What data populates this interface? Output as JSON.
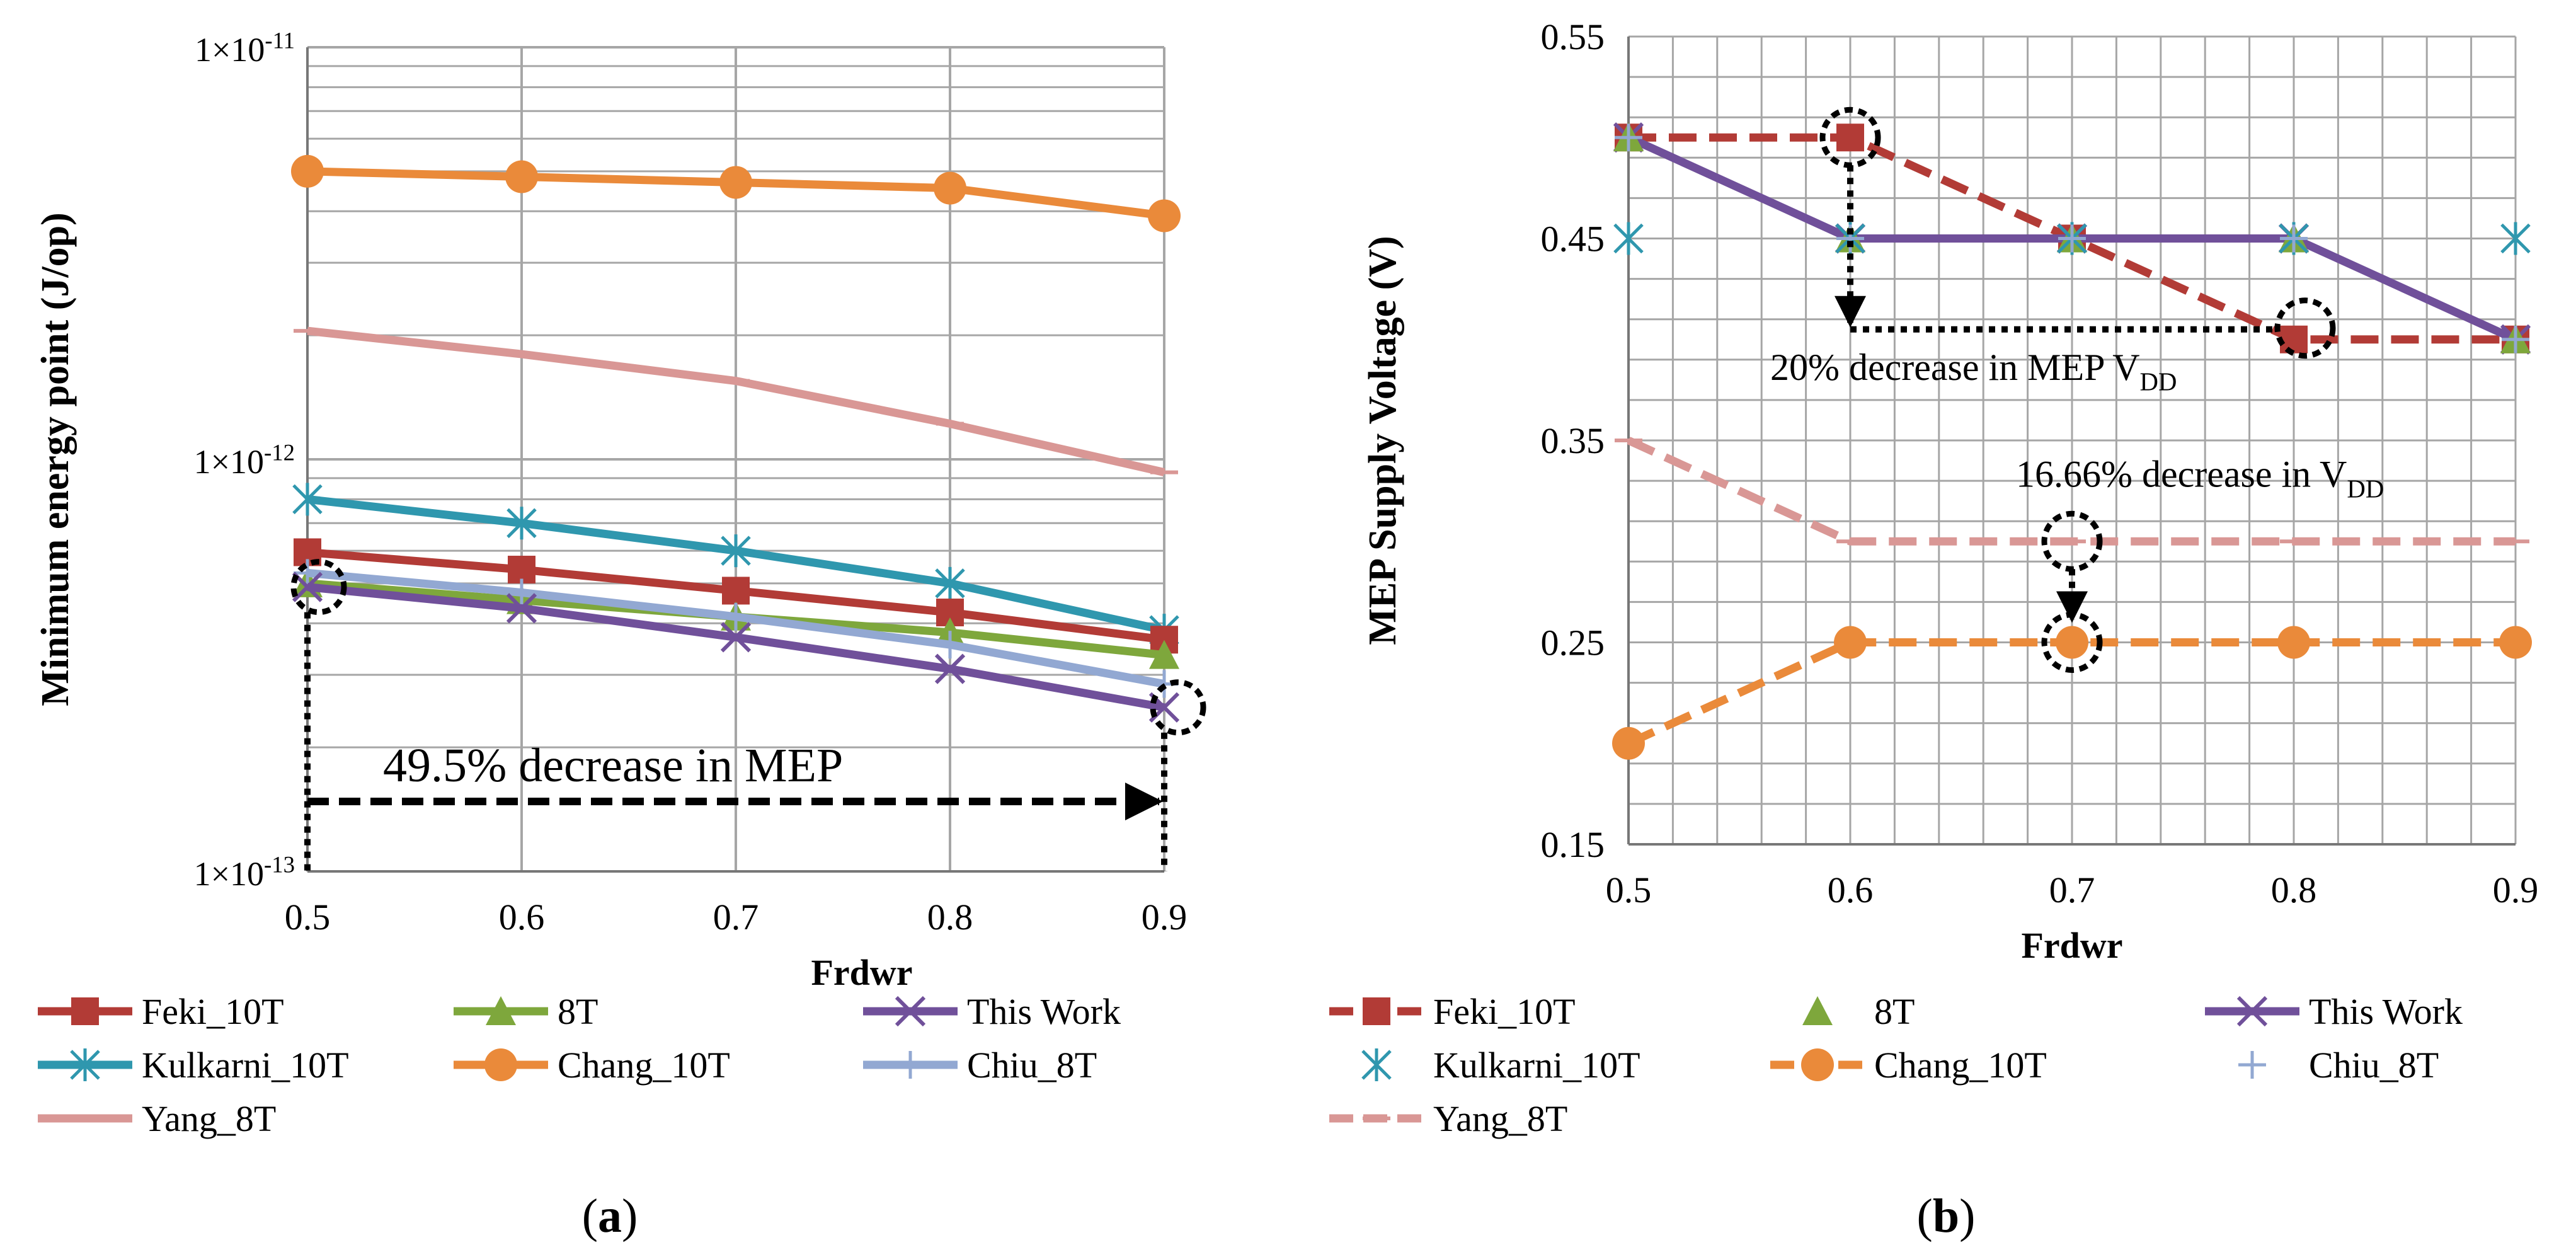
{
  "colors": {
    "feki": "#b23b36",
    "eight_t": "#7ea73c",
    "this_work": "#70509a",
    "kulkarni": "#2f97ae",
    "chang": "#ea8a3a",
    "chiu": "#92a8d2",
    "yang": "#d99795",
    "grid": "#a6a6a6",
    "annotation": "#000000"
  },
  "chart_data": [
    {
      "id": "a",
      "type": "line",
      "yscale": "log",
      "panel_label": "(a)",
      "xlabel": "Frdwr",
      "ylabel": "Minimum energy point (J/op)",
      "x": [
        0.5,
        0.6,
        0.7,
        0.8,
        0.9
      ],
      "x_tick_labels": [
        "0.5",
        "0.6",
        "0.7",
        "0.8",
        "0.9"
      ],
      "ylim": [
        1e-13,
        1e-11
      ],
      "y_ticks": [
        {
          "value": 1e-11,
          "base": "1×10",
          "exp": "-11"
        },
        {
          "value": 1e-12,
          "base": "1×10",
          "exp": "-12"
        },
        {
          "value": 1e-13,
          "base": "1×10",
          "exp": "-13"
        }
      ],
      "grid": true,
      "series": [
        {
          "key": "chang",
          "name": "Chang_10T",
          "marker": "circle",
          "dash": "solid",
          "values": [
            5e-12,
            4.85e-12,
            4.7e-12,
            4.55e-12,
            3.9e-12
          ]
        },
        {
          "key": "yang",
          "name": "Yang_8T",
          "marker": "dash",
          "dash": "solid",
          "values": [
            2.05e-12,
            1.8e-12,
            1.55e-12,
            1.22e-12,
            9.3e-13
          ]
        },
        {
          "key": "kulkarni",
          "name": "Kulkarni_10T",
          "marker": "asterisk",
          "dash": "solid",
          "values": [
            8e-13,
            7e-13,
            6e-13,
            5e-13,
            3.85e-13
          ]
        },
        {
          "key": "feki",
          "name": "Feki_10T",
          "marker": "square",
          "dash": "solid",
          "values": [
            5.95e-13,
            5.4e-13,
            4.8e-13,
            4.25e-13,
            3.65e-13
          ]
        },
        {
          "key": "eight_t",
          "name": "8T",
          "marker": "triangle",
          "dash": "solid",
          "values": [
            5e-13,
            4.55e-13,
            4.15e-13,
            3.8e-13,
            3.35e-13
          ]
        },
        {
          "key": "chiu",
          "name": "Chiu_8T",
          "marker": "plus",
          "dash": "solid",
          "values": [
            5.3e-13,
            4.75e-13,
            4.15e-13,
            3.55e-13,
            2.85e-13
          ]
        },
        {
          "key": "this_work",
          "name": "This Work",
          "marker": "x",
          "dash": "solid",
          "values": [
            4.9e-13,
            4.35e-13,
            3.7e-13,
            3.1e-13,
            2.5e-13
          ]
        }
      ],
      "legend_order": [
        "feki",
        "eight_t",
        "this_work",
        "kulkarni",
        "chang",
        "chiu",
        "yang"
      ],
      "annotations": {
        "mep_text": "49.5% decrease in MEP"
      }
    },
    {
      "id": "b",
      "type": "line",
      "yscale": "linear",
      "panel_label": "(b)",
      "xlabel": "Frdwr",
      "ylabel": "MEP Supply Voltage (V)",
      "x": [
        0.5,
        0.6,
        0.7,
        0.8,
        0.9
      ],
      "x_tick_labels": [
        "0.5",
        "0.6",
        "0.7",
        "0.8",
        "0.9"
      ],
      "ylim": [
        0.15,
        0.55
      ],
      "y_tick_labels": [
        "0.15",
        "0.25",
        "0.35",
        "0.45",
        "0.55"
      ],
      "y_tick_values": [
        0.15,
        0.25,
        0.35,
        0.45,
        0.55
      ],
      "grid": true,
      "series": [
        {
          "key": "yang",
          "name": "Yang_8T",
          "marker": "dash",
          "dash": "dashed",
          "values": [
            0.35,
            0.3,
            0.3,
            0.3,
            0.3
          ]
        },
        {
          "key": "chang",
          "name": "Chang_10T",
          "marker": "circle",
          "dash": "dashed",
          "values": [
            0.2,
            0.25,
            0.25,
            0.25,
            0.25
          ]
        },
        {
          "key": "feki",
          "name": "Feki_10T",
          "marker": "square",
          "dash": "dashed",
          "values": [
            0.5,
            0.5,
            0.45,
            0.4,
            0.4
          ]
        },
        {
          "key": "this_work",
          "name": "This Work",
          "marker": "x",
          "dash": "solid",
          "values": [
            0.5,
            0.45,
            0.45,
            0.45,
            0.4
          ]
        },
        {
          "key": "eight_t",
          "name": "8T",
          "marker": "triangle",
          "dash": "none",
          "values": [
            0.5,
            0.45,
            0.45,
            0.45,
            0.4
          ]
        },
        {
          "key": "kulkarni",
          "name": "Kulkarni_10T",
          "marker": "asterisk",
          "dash": "none",
          "values": [
            0.45,
            0.45,
            0.45,
            0.45,
            0.45
          ]
        },
        {
          "key": "chiu",
          "name": "Chiu_8T",
          "marker": "plus",
          "dash": "none",
          "values": [
            0.5,
            0.45,
            0.45,
            0.45,
            0.4
          ]
        }
      ],
      "legend_order": [
        "feki",
        "eight_t",
        "this_work",
        "kulkarni",
        "chang",
        "chiu",
        "yang"
      ],
      "annotations": {
        "vdd_mep_text": "20% decrease in MEP V",
        "vdd_mep_sub": "DD",
        "vdd_text": "16.66% decrease in V",
        "vdd_sub": "DD"
      }
    }
  ]
}
